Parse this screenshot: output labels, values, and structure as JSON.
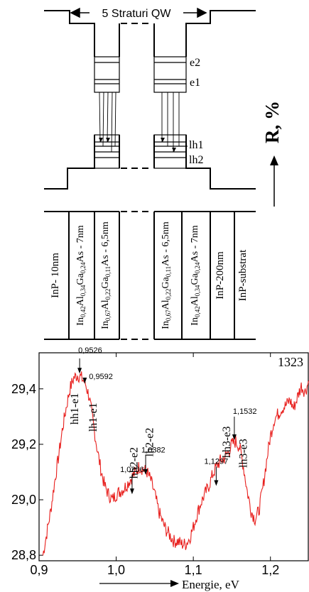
{
  "diagram": {
    "qw_label": "5 Straturi QW",
    "levels": {
      "e2": "e2",
      "e1": "e1",
      "lh1": "lh1",
      "lh2": "lh2"
    },
    "axis_r_label": "R, %",
    "layers": [
      {
        "id": "inp10",
        "text": "InP- 10nm"
      },
      {
        "id": "l1",
        "base": "In",
        "s1": "0,42",
        "m1": "Al",
        "s2": "0,34",
        "m2": "Ga",
        "s3": "0,24",
        "tail": "As - 7nm"
      },
      {
        "id": "l2",
        "base": "In",
        "s1": "0,67",
        "m1": "Al",
        "s2": "0,22",
        "m2": "Ga",
        "s3": "0,11",
        "tail": "As - 6,5nm"
      },
      {
        "id": "l3",
        "base": "In",
        "s1": "0,67",
        "m1": "Al",
        "s2": "0,22",
        "m2": "Ga",
        "s3": "0,11",
        "tail": "As - 6,5nm"
      },
      {
        "id": "l4",
        "base": "In",
        "s1": "0,42",
        "m1": "Al",
        "s2": "0,34",
        "m2": "Ga",
        "s3": "0,24",
        "tail": "As - 7nm"
      },
      {
        "id": "inp200",
        "text": "InP-200nm"
      },
      {
        "id": "subs",
        "text": "InP-substrat"
      }
    ]
  },
  "chart_data": {
    "type": "line",
    "sample_label": "1323",
    "xlabel": "Energie, eV",
    "xlim": [
      0.9,
      1.25
    ],
    "ylim": [
      28.78,
      29.53
    ],
    "x_ticks": [
      {
        "v": 0.9,
        "label": "0,9"
      },
      {
        "v": 1.0,
        "label": "1,0"
      },
      {
        "v": 1.1,
        "label": "1,1"
      },
      {
        "v": 1.2,
        "label": "1,2"
      }
    ],
    "y_ticks": [
      {
        "v": 28.8,
        "label": "28,8"
      },
      {
        "v": 29.0,
        "label": "29,0"
      },
      {
        "v": 29.2,
        "label": "29,2"
      },
      {
        "v": 29.4,
        "label": "29,4"
      }
    ],
    "series": [
      {
        "color": "#e8201e",
        "x": [
          0.905,
          0.91,
          0.915,
          0.92,
          0.925,
          0.93,
          0.935,
          0.94,
          0.945,
          0.95,
          0.955,
          0.96,
          0.965,
          0.97,
          0.975,
          0.98,
          0.985,
          0.99,
          0.995,
          1.0,
          1.005,
          1.01,
          1.015,
          1.02,
          1.025,
          1.03,
          1.035,
          1.04,
          1.045,
          1.05,
          1.055,
          1.06,
          1.065,
          1.07,
          1.075,
          1.08,
          1.085,
          1.09,
          1.095,
          1.1,
          1.105,
          1.11,
          1.115,
          1.12,
          1.125,
          1.13,
          1.135,
          1.14,
          1.145,
          1.15,
          1.155,
          1.16,
          1.165,
          1.17,
          1.175,
          1.18,
          1.185,
          1.19,
          1.195,
          1.2,
          1.205,
          1.21,
          1.215,
          1.22,
          1.225,
          1.23,
          1.235,
          1.24,
          1.245,
          1.25
        ],
        "y": [
          28.8,
          28.88,
          28.96,
          29.06,
          29.15,
          29.25,
          29.33,
          29.4,
          29.44,
          29.45,
          29.44,
          29.42,
          29.37,
          29.28,
          29.19,
          29.11,
          29.05,
          29.02,
          29.0,
          29.02,
          29.03,
          29.04,
          29.06,
          29.08,
          29.1,
          29.12,
          29.11,
          29.1,
          29.07,
          29.02,
          28.96,
          28.92,
          28.89,
          28.87,
          28.85,
          28.85,
          28.84,
          28.84,
          28.86,
          28.9,
          28.95,
          28.99,
          29.02,
          29.05,
          29.09,
          29.12,
          29.14,
          29.15,
          29.17,
          29.2,
          29.21,
          29.19,
          29.12,
          29.03,
          28.96,
          28.93,
          28.96,
          29.04,
          29.14,
          29.23,
          29.29,
          29.31,
          29.33,
          29.34,
          29.36,
          29.33,
          29.37,
          29.41,
          29.39,
          29.43
        ]
      }
    ],
    "annotations": [
      {
        "id": "hh1e1",
        "text": "hh1-e1",
        "x": 0.946,
        "y_top": 29.385
      },
      {
        "id": "lh1e1",
        "text": "lh1-e1",
        "x": 0.97,
        "y_top": 29.35
      },
      {
        "id": "hh2e2",
        "text": "hh2-e2",
        "x": 1.023,
        "y_top": 29.19
      },
      {
        "id": "lh2e2",
        "text": "lh2-e2",
        "x": 1.043,
        "y_top": 29.26
      },
      {
        "id": "hh3e3",
        "text": "hh3-e3",
        "x": 1.143,
        "y_top": 29.265
      },
      {
        "id": "lh3e3",
        "text": "lh3-e3",
        "x": 1.165,
        "y_top": 29.22
      }
    ],
    "markers": [
      {
        "id": "m09526",
        "label": "0,9526",
        "x": 0.9526,
        "y": 29.455
      },
      {
        "id": "m09592",
        "label": "0,9592",
        "x": 0.9592,
        "y": 29.42
      },
      {
        "id": "m10206",
        "label": "1,0206",
        "x": 1.0206,
        "y": 29.02
      },
      {
        "id": "m10382",
        "label": "1,0382",
        "x": 1.0382,
        "y": 29.09
      },
      {
        "id": "m11297",
        "label": "1,1297",
        "x": 1.1297,
        "y": 29.05
      },
      {
        "id": "m11532",
        "label": "1,1532",
        "x": 1.1532,
        "y": 29.215
      }
    ]
  }
}
